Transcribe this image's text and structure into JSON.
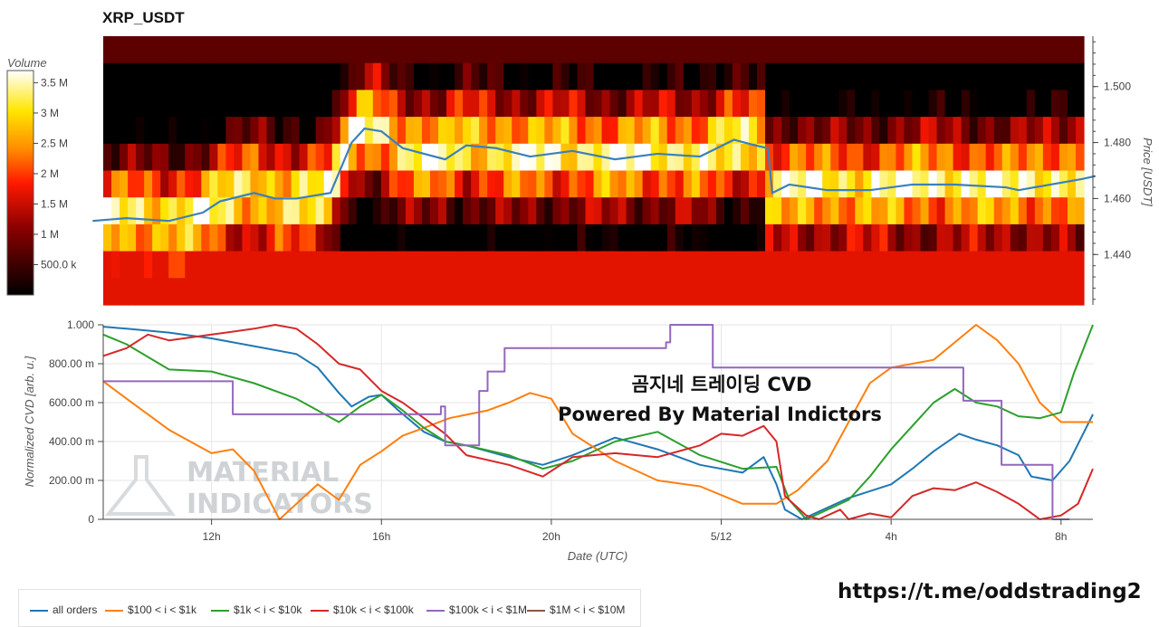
{
  "chart_data": [
    {
      "type": "heatmap",
      "title": "XRP_USDT",
      "colorbar": {
        "title": "Volume",
        "ticks": [
          "3.5 M",
          "3 M",
          "2.5 M",
          "2 M",
          "1.5 M",
          "1 M",
          "500.0 k"
        ],
        "tick_values": [
          3.5,
          3,
          2.5,
          2,
          1.5,
          1,
          0.5
        ],
        "range": [
          0,
          3.7
        ]
      },
      "ylabel": "Price [USDT]",
      "y_ticks": [
        "1.500",
        "1.480",
        "1.460",
        "1.440"
      ],
      "y_tick_values": [
        1.5,
        1.48,
        1.46,
        1.44
      ],
      "ylim": [
        1.422,
        1.518
      ],
      "price_line": {
        "x": [
          9.2,
          10.0,
          11.0,
          11.8,
          12.2,
          13.0,
          13.5,
          14.0,
          14.8,
          15.3,
          15.6,
          16.0,
          16.5,
          17.0,
          17.5,
          18.0,
          18.7,
          19.5,
          20.5,
          21.5,
          22.5,
          23.5,
          24.3,
          24.8,
          25.1,
          25.2,
          25.6,
          26.5,
          27.5,
          28.5,
          29.5,
          30.7,
          31.0,
          32.5,
          32.8
        ],
        "y": [
          1.452,
          1.453,
          1.452,
          1.455,
          1.459,
          1.462,
          1.46,
          1.46,
          1.462,
          1.48,
          1.485,
          1.484,
          1.478,
          1.476,
          1.474,
          1.479,
          1.478,
          1.475,
          1.477,
          1.474,
          1.476,
          1.475,
          1.481,
          1.479,
          1.478,
          1.462,
          1.465,
          1.463,
          1.463,
          1.465,
          1.465,
          1.464,
          1.463,
          1.467,
          1.468
        ]
      }
    },
    {
      "type": "line",
      "xlabel": "Date (UTC)",
      "ylabel": "Normalized CVD [arb. u.]",
      "x_ticks": [
        "12h",
        "16h",
        "20h",
        "5/12",
        "4h",
        "8h"
      ],
      "x_tick_values": [
        12,
        16,
        20,
        24,
        28,
        32
      ],
      "xlim": [
        9.45,
        32.75
      ],
      "y_ticks": [
        "0",
        "200.00 m",
        "400.00 m",
        "600.00 m",
        "800.00 m",
        "1.000"
      ],
      "y_tick_values": [
        0,
        0.2,
        0.4,
        0.6,
        0.8,
        1.0
      ],
      "ylim": [
        0,
        1.0
      ],
      "series": [
        {
          "name": "all orders",
          "color": "#1f77b4",
          "x": [
            9.45,
            10.0,
            11.0,
            12.0,
            13.0,
            14.0,
            14.5,
            15.0,
            15.3,
            15.7,
            16.0,
            16.4,
            17.0,
            17.5,
            18.0,
            19.0,
            19.8,
            20.5,
            21.5,
            22.5,
            23.5,
            24.5,
            25.0,
            25.3,
            25.5,
            25.9,
            26.3,
            27.0,
            28.0,
            28.5,
            29.0,
            29.6,
            30.0,
            30.5,
            31.0,
            31.3,
            31.8,
            32.2,
            32.75
          ],
          "y": [
            0.99,
            0.98,
            0.96,
            0.93,
            0.89,
            0.85,
            0.78,
            0.65,
            0.58,
            0.63,
            0.64,
            0.56,
            0.45,
            0.4,
            0.38,
            0.32,
            0.28,
            0.33,
            0.42,
            0.36,
            0.28,
            0.24,
            0.32,
            0.18,
            0.05,
            0.0,
            0.04,
            0.11,
            0.18,
            0.26,
            0.35,
            0.44,
            0.41,
            0.38,
            0.33,
            0.22,
            0.2,
            0.3,
            0.54
          ]
        },
        {
          "name": "$100 < i < $1k",
          "color": "#ff7f0e",
          "x": [
            9.45,
            10.0,
            11.0,
            12.0,
            12.5,
            13.0,
            13.6,
            14.0,
            14.5,
            15.0,
            15.5,
            16.0,
            16.5,
            17.0,
            17.6,
            18.5,
            19.0,
            19.5,
            20.0,
            20.5,
            21.5,
            22.5,
            23.5,
            24.5,
            25.3,
            25.8,
            26.5,
            27.5,
            28.0,
            28.5,
            29.0,
            29.5,
            30.0,
            30.5,
            31.0,
            31.5,
            32.0,
            32.75
          ],
          "y": [
            0.71,
            0.62,
            0.46,
            0.34,
            0.36,
            0.25,
            0.0,
            0.08,
            0.18,
            0.1,
            0.28,
            0.35,
            0.43,
            0.47,
            0.52,
            0.56,
            0.6,
            0.65,
            0.62,
            0.44,
            0.3,
            0.2,
            0.17,
            0.08,
            0.08,
            0.15,
            0.3,
            0.7,
            0.78,
            0.8,
            0.82,
            0.91,
            1.0,
            0.92,
            0.8,
            0.6,
            0.5,
            0.5
          ]
        },
        {
          "name": "$1k < i < $10k",
          "color": "#2ca02c",
          "x": [
            9.45,
            10.0,
            11.0,
            12.0,
            13.0,
            14.0,
            15.0,
            15.5,
            16.0,
            16.5,
            17.0,
            17.5,
            18.0,
            19.0,
            19.8,
            20.5,
            21.5,
            22.5,
            23.5,
            24.5,
            25.3,
            25.6,
            26.0,
            26.5,
            27.0,
            27.5,
            28.0,
            28.5,
            29.0,
            29.5,
            30.0,
            30.5,
            31.0,
            31.5,
            32.0,
            32.3,
            32.75
          ],
          "y": [
            0.95,
            0.9,
            0.77,
            0.76,
            0.7,
            0.62,
            0.5,
            0.58,
            0.64,
            0.56,
            0.47,
            0.4,
            0.38,
            0.33,
            0.26,
            0.3,
            0.4,
            0.45,
            0.33,
            0.26,
            0.27,
            0.1,
            0.0,
            0.05,
            0.1,
            0.22,
            0.36,
            0.48,
            0.6,
            0.67,
            0.6,
            0.58,
            0.53,
            0.52,
            0.55,
            0.75,
            1.0
          ]
        },
        {
          "name": "$10k < i < $100k",
          "color": "#d62728",
          "x": [
            9.45,
            10.0,
            10.5,
            11.0,
            12.0,
            13.0,
            13.5,
            14.0,
            14.5,
            15.0,
            15.5,
            16.0,
            16.5,
            17.0,
            17.5,
            18.0,
            19.0,
            19.8,
            20.5,
            21.5,
            22.5,
            23.5,
            24.0,
            24.5,
            25.0,
            25.3,
            25.5,
            26.0,
            26.3,
            26.8,
            27.0,
            27.5,
            28.0,
            28.5,
            29.0,
            29.5,
            30.0,
            30.5,
            31.0,
            31.5,
            32.0,
            32.4,
            32.75
          ],
          "y": [
            0.84,
            0.88,
            0.95,
            0.92,
            0.95,
            0.98,
            1.0,
            0.98,
            0.9,
            0.8,
            0.77,
            0.66,
            0.6,
            0.52,
            0.44,
            0.33,
            0.28,
            0.22,
            0.32,
            0.34,
            0.32,
            0.38,
            0.44,
            0.43,
            0.48,
            0.4,
            0.12,
            0.02,
            0.0,
            0.05,
            0.0,
            0.03,
            0.01,
            0.12,
            0.16,
            0.15,
            0.19,
            0.14,
            0.08,
            0.0,
            0.02,
            0.08,
            0.26
          ]
        },
        {
          "name": "$100k < i < $1M",
          "color": "#9467bd",
          "step": true,
          "x": [
            9.45,
            12.5,
            12.5,
            17.4,
            17.4,
            17.5,
            17.5,
            18.3,
            18.3,
            18.5,
            18.5,
            18.9,
            18.9,
            22.7,
            22.7,
            22.8,
            22.8,
            23.8,
            23.8,
            29.7,
            29.7,
            30.6,
            30.6,
            31.8,
            31.8,
            32.2
          ],
          "y": [
            0.71,
            0.71,
            0.54,
            0.54,
            0.58,
            0.58,
            0.38,
            0.38,
            0.66,
            0.66,
            0.76,
            0.76,
            0.88,
            0.88,
            0.91,
            0.91,
            1.0,
            1.0,
            0.78,
            0.78,
            0.61,
            0.61,
            0.28,
            0.28,
            0.0,
            0.0
          ]
        },
        {
          "name": "$1M < i < $10M",
          "color": "#8c564b",
          "x": [],
          "y": []
        }
      ]
    }
  ],
  "watermark": {
    "line1": "MATERIAL",
    "line2": "INDICATORS"
  },
  "overlay": {
    "line1": "곰지네 트레이딩 CVD",
    "line2": "Powered By Material Indictors"
  },
  "link_text": "https://t.me/oddstrading2"
}
